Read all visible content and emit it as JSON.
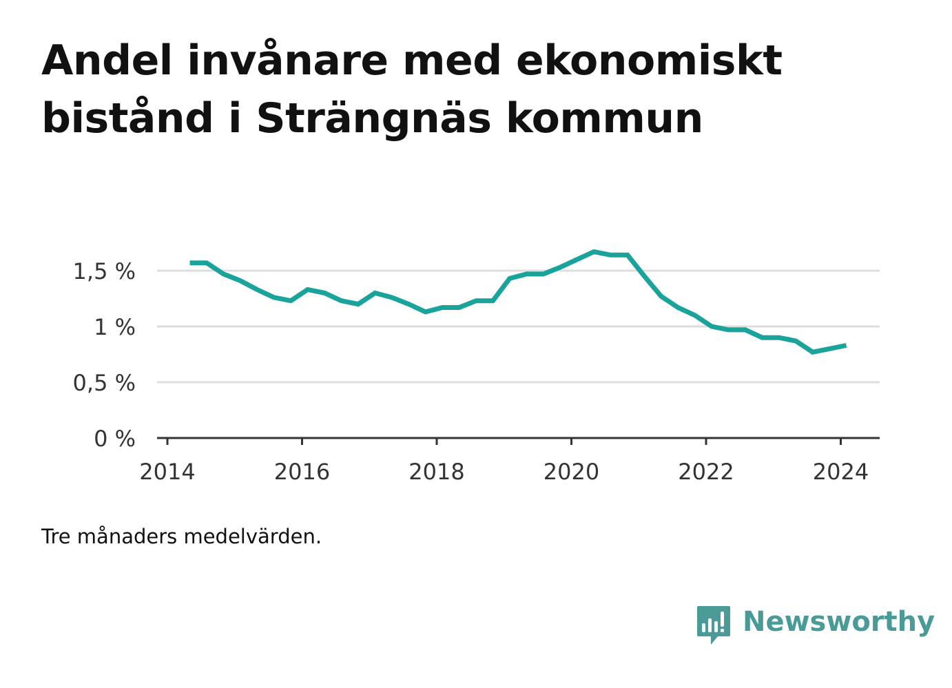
{
  "title": "Andel invånare med ekonomiskt bistånd i Strängnäs kommun",
  "note": "Tre månaders medelvärden.",
  "brand": {
    "name": "Newsworthy",
    "icon": "newsworthy-logo-icon",
    "color": "#4a9b97"
  },
  "chart_data": {
    "type": "line",
    "title": "Andel invånare med ekonomiskt bistånd i Strängnäs kommun",
    "xlabel": "",
    "ylabel": "",
    "x_ticks": [
      "2014",
      "2016",
      "2018",
      "2020",
      "2022",
      "2024"
    ],
    "y_ticks": [
      "0 %",
      "0,5 %",
      "1 %",
      "1,5 %"
    ],
    "xlim": [
      2014,
      2024.6
    ],
    "ylim": [
      0,
      1.8
    ],
    "grid": true,
    "line_color": "#19a39b",
    "series": [
      {
        "x": [
          "2014-05",
          "2014-08",
          "2014-11",
          "2015-02",
          "2015-05",
          "2015-08",
          "2015-11",
          "2016-02",
          "2016-05",
          "2016-08",
          "2016-11",
          "2017-02",
          "2017-05",
          "2017-08",
          "2017-11",
          "2018-02",
          "2018-05",
          "2018-08",
          "2018-11",
          "2019-02",
          "2019-05",
          "2019-08",
          "2019-11",
          "2020-02",
          "2020-05",
          "2020-08",
          "2020-11",
          "2021-02",
          "2021-05",
          "2021-08",
          "2021-11",
          "2022-02",
          "2022-05",
          "2022-08",
          "2022-11",
          "2023-02",
          "2023-05",
          "2023-08",
          "2023-11",
          "2024-02"
        ],
        "values": [
          1.57,
          1.57,
          1.47,
          1.41,
          1.33,
          1.26,
          1.23,
          1.33,
          1.3,
          1.23,
          1.2,
          1.3,
          1.26,
          1.2,
          1.13,
          1.17,
          1.17,
          1.23,
          1.23,
          1.43,
          1.47,
          1.47,
          1.53,
          1.6,
          1.67,
          1.64,
          1.64,
          1.45,
          1.27,
          1.17,
          1.1,
          1.0,
          0.97,
          0.97,
          0.9,
          0.9,
          0.87,
          0.77,
          0.8,
          0.83
        ]
      }
    ]
  }
}
